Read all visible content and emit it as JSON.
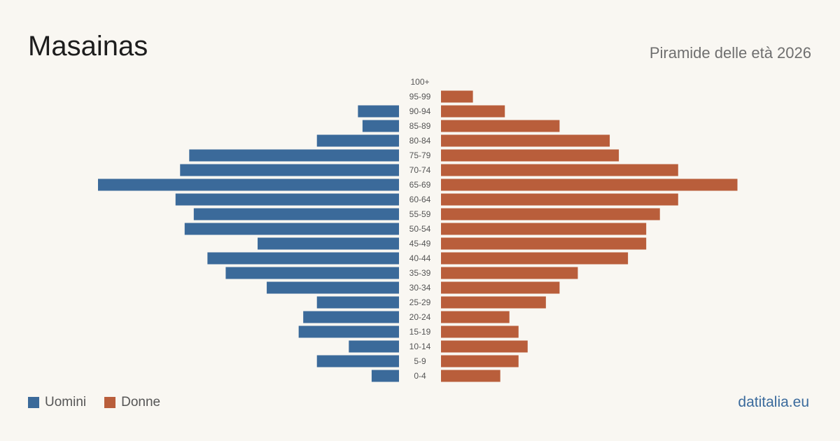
{
  "header": {
    "title": "Masainas",
    "subtitle": "Piramide delle età 2026"
  },
  "legend": {
    "items": [
      {
        "label": "Uomini",
        "color": "#3b6a9a"
      },
      {
        "label": "Donne",
        "color": "#b95e3b"
      }
    ]
  },
  "footer": {
    "source": "datitalia.eu"
  },
  "chart_data": {
    "type": "bar",
    "orientation": "horizontal-pyramid",
    "categories": [
      "100+",
      "95-99",
      "90-94",
      "85-89",
      "80-84",
      "75-79",
      "70-74",
      "65-69",
      "60-64",
      "55-59",
      "50-54",
      "45-49",
      "40-44",
      "35-39",
      "30-34",
      "25-29",
      "20-24",
      "15-19",
      "10-14",
      "5-9",
      "0-4"
    ],
    "series": [
      {
        "name": "Uomini",
        "color": "#3b6a9a",
        "values": [
          0,
          0,
          9,
          8,
          18,
          46,
          48,
          66,
          49,
          45,
          47,
          31,
          42,
          38,
          29,
          18,
          21,
          22,
          11,
          18,
          6
        ]
      },
      {
        "name": "Donne",
        "color": "#b95e3b",
        "values": [
          0,
          7,
          14,
          26,
          37,
          39,
          52,
          65,
          52,
          48,
          45,
          45,
          41,
          30,
          26,
          23,
          15,
          17,
          19,
          17,
          13
        ]
      }
    ],
    "xlim": [
      0,
      66
    ],
    "grid": false,
    "legend_position": "bottom-left"
  }
}
